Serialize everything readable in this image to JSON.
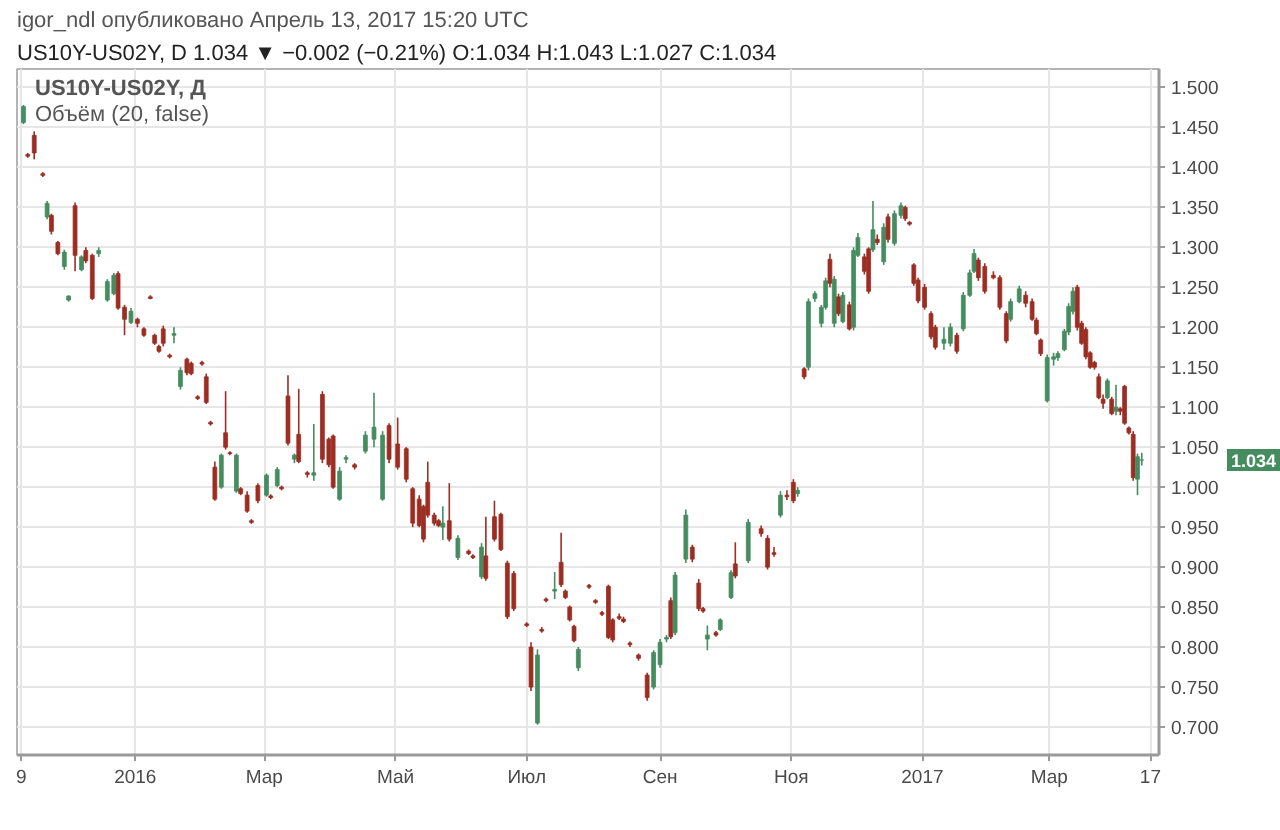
{
  "chart_data": {
    "type": "candlestick",
    "title": "US10Y-US02Y, D  1.034 ▼ −0.002 (−0.21%)  O:1.034 H:1.043 L:1.027 C:1.034",
    "annotations": [
      "igor_ndl опубликовано Апрель 13, 2017 15:20 UTC",
      "US10Y-US02Y, Д",
      "Объём (20, false)",
      "1.034"
    ],
    "x": [
      "2015-11-10",
      "2015-11-12",
      "2015-11-15",
      "2015-11-19",
      "2015-11-21",
      "2015-11-23",
      "2015-11-26",
      "2015-11-29",
      "2015-12-01",
      "2015-12-04",
      "2015-12-07",
      "2015-12-09",
      "2015-12-12",
      "2015-12-15",
      "2015-12-19",
      "2015-12-22",
      "2015-12-24",
      "2015-12-27",
      "2015-12-30",
      "2016-01-02",
      "2016-01-05",
      "2016-01-08",
      "2016-01-10",
      "2016-01-12",
      "2016-01-14",
      "2016-01-17",
      "2016-01-19",
      "2016-01-22",
      "2016-01-25",
      "2016-01-27",
      "2016-01-30",
      "2016-02-01",
      "2016-02-03",
      "2016-02-05",
      "2016-02-07",
      "2016-02-10",
      "2016-02-12",
      "2016-02-14",
      "2016-02-17",
      "2016-02-19",
      "2016-02-22",
      "2016-02-24",
      "2016-02-27",
      "2016-03-02",
      "2016-03-04",
      "2016-03-07",
      "2016-03-09",
      "2016-03-12",
      "2016-03-15",
      "2016-03-17",
      "2016-03-21",
      "2016-03-24",
      "2016-03-28",
      "2016-03-31",
      "2016-04-02",
      "2016-04-05",
      "2016-04-08",
      "2016-04-12",
      "2016-04-17",
      "2016-04-21",
      "2016-04-25",
      "2016-04-28",
      "2016-05-02",
      "2016-05-06",
      "2016-05-09",
      "2016-05-12",
      "2016-05-14",
      "2016-05-16",
      "2016-05-19",
      "2016-05-21",
      "2016-05-23",
      "2016-05-26",
      "2016-05-30",
      "2016-06-04",
      "2016-06-06",
      "2016-06-10",
      "2016-06-12",
      "2016-06-16",
      "2016-06-19",
      "2016-06-22",
      "2016-06-25",
      "2016-07-01",
      "2016-07-03",
      "2016-07-06",
      "2016-07-08",
      "2016-07-10",
      "2016-07-14",
      "2016-07-17",
      "2016-07-19",
      "2016-07-21",
      "2016-07-23",
      "2016-07-25",
      "2016-07-30",
      "2016-08-02",
      "2016-08-05",
      "2016-08-08",
      "2016-08-10",
      "2016-08-13",
      "2016-08-15",
      "2016-08-18",
      "2016-08-22",
      "2016-08-26",
      "2016-08-29",
      "2016-09-01",
      "2016-09-04",
      "2016-09-06",
      "2016-09-08",
      "2016-09-13",
      "2016-09-16",
      "2016-09-19",
      "2016-09-21",
      "2016-09-23",
      "2016-09-27",
      "2016-09-29",
      "2016-10-04",
      "2016-10-06",
      "2016-10-12",
      "2016-10-18",
      "2016-10-21",
      "2016-10-24",
      "2016-10-27",
      "2016-10-30",
      "2016-11-02",
      "2016-11-04",
      "2016-11-07",
      "2016-11-09",
      "2016-11-12",
      "2016-11-15",
      "2016-11-17",
      "2016-11-19",
      "2016-11-21",
      "2016-11-23",
      "2016-11-25",
      "2016-11-28",
      "2016-11-30",
      "2016-12-02",
      "2016-12-05",
      "2016-12-07",
      "2016-12-09",
      "2016-12-11",
      "2016-12-14",
      "2016-12-16",
      "2016-12-19",
      "2016-12-22",
      "2016-12-24",
      "2016-12-26",
      "2016-12-28",
      "2016-12-30",
      "2017-01-02",
      "2017-01-05",
      "2017-01-07",
      "2017-01-11",
      "2017-01-14",
      "2017-01-17",
      "2017-01-20",
      "2017-01-23",
      "2017-01-25",
      "2017-01-27",
      "2017-01-30",
      "2017-02-03",
      "2017-02-06",
      "2017-02-09",
      "2017-02-11",
      "2017-02-15",
      "2017-02-18",
      "2017-02-21",
      "2017-02-23",
      "2017-02-25",
      "2017-02-28",
      "2017-03-03",
      "2017-03-05",
      "2017-03-08",
      "2017-03-10",
      "2017-03-12",
      "2017-03-14",
      "2017-03-16",
      "2017-03-18",
      "2017-03-20",
      "2017-03-22",
      "2017-03-24",
      "2017-03-26",
      "2017-03-28",
      "2017-03-30",
      "2017-04-01",
      "2017-04-03",
      "2017-04-05",
      "2017-04-07",
      "2017-04-09",
      "2017-04-11",
      "2017-04-13"
    ],
    "ohlc": [
      [
        1.456,
        1.478,
        1.454,
        1.476
      ],
      [
        1.416,
        1.418,
        1.412,
        1.414
      ],
      [
        1.44,
        1.445,
        1.41,
        1.418
      ],
      [
        1.392,
        1.394,
        1.388,
        1.39
      ],
      [
        1.338,
        1.358,
        1.335,
        1.355
      ],
      [
        1.34,
        1.342,
        1.316,
        1.32
      ],
      [
        1.306,
        1.308,
        1.29,
        1.292
      ],
      [
        1.276,
        1.297,
        1.272,
        1.294
      ],
      [
        1.234,
        1.24,
        1.232,
        1.239
      ],
      [
        1.352,
        1.356,
        1.27,
        1.29
      ],
      [
        1.272,
        1.29,
        1.27,
        1.288
      ],
      [
        1.296,
        1.3,
        1.28,
        1.283
      ],
      [
        1.29,
        1.292,
        1.234,
        1.236
      ],
      [
        1.292,
        1.3,
        1.288,
        1.296
      ],
      [
        1.234,
        1.26,
        1.232,
        1.257
      ],
      [
        1.242,
        1.268,
        1.24,
        1.265
      ],
      [
        1.267,
        1.27,
        1.222,
        1.224
      ],
      [
        1.225,
        1.228,
        1.19,
        1.21
      ],
      [
        1.206,
        1.224,
        1.204,
        1.22
      ],
      [
        1.21,
        1.212,
        1.2,
        1.205
      ],
      [
        1.198,
        1.2,
        1.188,
        1.19
      ],
      [
        1.238,
        1.24,
        1.235,
        1.236
      ],
      [
        1.19,
        1.192,
        1.178,
        1.18
      ],
      [
        1.176,
        1.178,
        1.168,
        1.17
      ],
      [
        1.198,
        1.202,
        1.176,
        1.18
      ],
      [
        1.165,
        1.167,
        1.161,
        1.163
      ],
      [
        1.19,
        1.2,
        1.18,
        1.192
      ],
      [
        1.126,
        1.15,
        1.122,
        1.146
      ],
      [
        1.16,
        1.162,
        1.14,
        1.143
      ],
      [
        1.155,
        1.157,
        1.14,
        1.142
      ],
      [
        1.113,
        1.115,
        1.109,
        1.111
      ],
      [
        1.156,
        1.158,
        1.152,
        1.154
      ],
      [
        1.138,
        1.142,
        1.104,
        1.106
      ],
      [
        1.081,
        1.083,
        1.077,
        1.079
      ],
      [
        1.025,
        1.032,
        0.983,
        0.985
      ],
      [
        1.0,
        1.042,
        0.998,
        1.04
      ],
      [
        1.068,
        1.12,
        1.047,
        1.05
      ],
      [
        1.043,
        1.045,
        1.04,
        1.042
      ],
      [
        0.995,
        1.042,
        0.993,
        1.04
      ],
      [
        0.998,
        1.0,
        0.99,
        0.992
      ],
      [
        0.99,
        0.995,
        0.968,
        0.97
      ],
      [
        0.958,
        0.96,
        0.954,
        0.956
      ],
      [
        1.002,
        1.005,
        0.98,
        0.983
      ],
      [
        0.99,
        1.017,
        0.988,
        1.015
      ],
      [
        0.989,
        0.991,
        0.985,
        0.987
      ],
      [
        1.002,
        1.025,
        1.0,
        1.022
      ],
      [
        1.0,
        1.002,
        0.996,
        0.998
      ],
      [
        1.114,
        1.14,
        1.052,
        1.055
      ],
      [
        1.035,
        1.042,
        1.03,
        1.04
      ],
      [
        1.066,
        1.123,
        1.03,
        1.032
      ],
      [
        1.018,
        1.02,
        1.012,
        1.016
      ],
      [
        1.015,
        1.079,
        1.008,
        1.018
      ],
      [
        1.116,
        1.12,
        1.03,
        1.035
      ],
      [
        1.06,
        1.062,
        1.025,
        1.028
      ],
      [
        1.064,
        1.066,
        0.998,
        1.0
      ],
      [
        0.985,
        1.025,
        0.983,
        1.02
      ],
      [
        1.035,
        1.04,
        1.03,
        1.037
      ],
      [
        1.028,
        1.03,
        1.022,
        1.025
      ],
      [
        1.045,
        1.07,
        1.042,
        1.065
      ],
      [
        1.06,
        1.118,
        1.05,
        1.075
      ],
      [
        0.985,
        1.07,
        0.983,
        1.065
      ],
      [
        1.077,
        1.08,
        1.03,
        1.035
      ],
      [
        1.054,
        1.087,
        1.022,
        1.025
      ],
      [
        1.048,
        1.05,
        1.006,
        1.01
      ],
      [
        0.998,
        1.0,
        0.95,
        0.955
      ],
      [
        0.985,
        0.99,
        0.95,
        0.952
      ],
      [
        0.976,
        0.978,
        0.931,
        0.935
      ],
      [
        1.006,
        1.032,
        0.962,
        0.965
      ],
      [
        0.965,
        0.968,
        0.952,
        0.955
      ],
      [
        0.958,
        0.96,
        0.95,
        0.952
      ],
      [
        0.95,
        0.976,
        0.934,
        0.955
      ],
      [
        0.958,
        1.005,
        0.932,
        0.935
      ],
      [
        0.912,
        0.94,
        0.909,
        0.936
      ],
      [
        0.92,
        0.922,
        0.915,
        0.917
      ],
      [
        0.914,
        0.916,
        0.91,
        0.912
      ],
      [
        0.888,
        0.93,
        0.885,
        0.925
      ],
      [
        0.914,
        0.963,
        0.883,
        0.886
      ],
      [
        0.963,
        0.983,
        0.932,
        0.935
      ],
      [
        0.966,
        0.968,
        0.92,
        0.922
      ],
      [
        0.905,
        0.908,
        0.835,
        0.838
      ],
      [
        0.892,
        0.895,
        0.845,
        0.848
      ],
      [
        0.829,
        0.831,
        0.825,
        0.827
      ],
      [
        0.8,
        0.806,
        0.745,
        0.75
      ],
      [
        0.705,
        0.797,
        0.703,
        0.79
      ],
      [
        0.822,
        0.825,
        0.818,
        0.82
      ],
      [
        0.86,
        0.862,
        0.856,
        0.858
      ],
      [
        0.87,
        0.894,
        0.86,
        0.872
      ],
      [
        0.906,
        0.943,
        0.875,
        0.878
      ],
      [
        0.87,
        0.872,
        0.86,
        0.862
      ],
      [
        0.85,
        0.852,
        0.832,
        0.834
      ],
      [
        0.826,
        0.828,
        0.806,
        0.808
      ],
      [
        0.774,
        0.8,
        0.77,
        0.797
      ],
      [
        0.877,
        0.879,
        0.873,
        0.875
      ],
      [
        0.858,
        0.86,
        0.854,
        0.856
      ],
      [
        0.843,
        0.845,
        0.839,
        0.841
      ],
      [
        0.876,
        0.878,
        0.81,
        0.812
      ],
      [
        0.834,
        0.836,
        0.806,
        0.809
      ],
      [
        0.838,
        0.842,
        0.834,
        0.836
      ],
      [
        0.835,
        0.838,
        0.83,
        0.832
      ],
      [
        0.805,
        0.807,
        0.8,
        0.803
      ],
      [
        0.79,
        0.792,
        0.783,
        0.786
      ],
      [
        0.765,
        0.768,
        0.733,
        0.737
      ],
      [
        0.75,
        0.796,
        0.747,
        0.793
      ],
      [
        0.778,
        0.81,
        0.774,
        0.806
      ],
      [
        0.81,
        0.815,
        0.806,
        0.812
      ],
      [
        0.858,
        0.862,
        0.81,
        0.813
      ],
      [
        0.818,
        0.894,
        0.815,
        0.89
      ],
      [
        0.91,
        0.972,
        0.905,
        0.965
      ],
      [
        0.925,
        0.928,
        0.906,
        0.91
      ],
      [
        0.88,
        0.885,
        0.845,
        0.848
      ],
      [
        0.848,
        0.85,
        0.843,
        0.845
      ],
      [
        0.81,
        0.827,
        0.796,
        0.815
      ],
      [
        0.818,
        0.82,
        0.813,
        0.815
      ],
      [
        0.822,
        0.836,
        0.82,
        0.834
      ],
      [
        0.862,
        0.896,
        0.86,
        0.893
      ],
      [
        0.904,
        0.931,
        0.886,
        0.889
      ],
      [
        0.908,
        0.96,
        0.905,
        0.956
      ],
      [
        0.948,
        0.952,
        0.938,
        0.942
      ],
      [
        0.936,
        0.94,
        0.897,
        0.9
      ],
      [
        0.918,
        0.925,
        0.913,
        0.916
      ],
      [
        0.965,
        0.995,
        0.962,
        0.99
      ],
      [
        0.99,
        0.996,
        0.984,
        0.988
      ],
      [
        1.006,
        1.01,
        0.98,
        0.983
      ],
      [
        0.992,
        1.0,
        0.988,
        0.996
      ],
      [
        1.148,
        1.15,
        1.135,
        1.138
      ],
      [
        1.15,
        1.236,
        1.146,
        1.232
      ],
      [
        1.236,
        1.245,
        1.232,
        1.242
      ],
      [
        1.205,
        1.228,
        1.2,
        1.225
      ],
      [
        1.225,
        1.262,
        1.222,
        1.258
      ],
      [
        1.285,
        1.292,
        1.25,
        1.255
      ],
      [
        1.205,
        1.264,
        1.2,
        1.26
      ],
      [
        1.238,
        1.242,
        1.214,
        1.217
      ],
      [
        1.207,
        1.244,
        1.205,
        1.24
      ],
      [
        1.228,
        1.232,
        1.196,
        1.198
      ],
      [
        1.2,
        1.3,
        1.196,
        1.296
      ],
      [
        1.29,
        1.318,
        1.288,
        1.312
      ],
      [
        1.288,
        1.292,
        1.266,
        1.27
      ],
      [
        1.298,
        1.3,
        1.242,
        1.245
      ],
      [
        1.297,
        1.358,
        1.294,
        1.322
      ],
      [
        1.31,
        1.316,
        1.303,
        1.306
      ],
      [
        1.282,
        1.33,
        1.278,
        1.325
      ],
      [
        1.338,
        1.342,
        1.306,
        1.31
      ],
      [
        1.305,
        1.346,
        1.302,
        1.342
      ],
      [
        1.34,
        1.356,
        1.336,
        1.352
      ],
      [
        1.35,
        1.352,
        1.333,
        1.336
      ],
      [
        1.331,
        1.333,
        1.327,
        1.329
      ],
      [
        1.278,
        1.28,
        1.252,
        1.255
      ],
      [
        1.259,
        1.262,
        1.23,
        1.233
      ],
      [
        1.25,
        1.254,
        1.222,
        1.225
      ],
      [
        1.217,
        1.22,
        1.185,
        1.188
      ],
      [
        1.2,
        1.203,
        1.172,
        1.175
      ],
      [
        1.18,
        1.2,
        1.172,
        1.185
      ],
      [
        1.18,
        1.205,
        1.176,
        1.2
      ],
      [
        1.19,
        1.193,
        1.167,
        1.17
      ],
      [
        1.198,
        1.244,
        1.195,
        1.24
      ],
      [
        1.24,
        1.272,
        1.238,
        1.268
      ],
      [
        1.27,
        1.298,
        1.268,
        1.292
      ],
      [
        1.284,
        1.287,
        1.258,
        1.262
      ],
      [
        1.276,
        1.28,
        1.242,
        1.245
      ],
      [
        1.265,
        1.27,
        1.26,
        1.262
      ],
      [
        1.262,
        1.265,
        1.222,
        1.225
      ],
      [
        1.217,
        1.22,
        1.18,
        1.183
      ],
      [
        1.21,
        1.236,
        1.207,
        1.232
      ],
      [
        1.232,
        1.252,
        1.23,
        1.248
      ],
      [
        1.24,
        1.245,
        1.225,
        1.23
      ],
      [
        1.232,
        1.236,
        1.208,
        1.21
      ],
      [
        1.209,
        1.212,
        1.19,
        1.192
      ],
      [
        1.184,
        1.186,
        1.164,
        1.167
      ],
      [
        1.108,
        1.166,
        1.106,
        1.162
      ],
      [
        1.16,
        1.168,
        1.152,
        1.163
      ],
      [
        1.162,
        1.17,
        1.158,
        1.167
      ],
      [
        1.172,
        1.198,
        1.17,
        1.195
      ],
      [
        1.194,
        1.23,
        1.19,
        1.226
      ],
      [
        1.22,
        1.25,
        1.216,
        1.245
      ],
      [
        1.25,
        1.253,
        1.196,
        1.2
      ],
      [
        1.205,
        1.208,
        1.178,
        1.18
      ],
      [
        1.197,
        1.2,
        1.16,
        1.163
      ],
      [
        1.168,
        1.17,
        1.148,
        1.15
      ],
      [
        1.156,
        1.158,
        1.147,
        1.15
      ],
      [
        1.138,
        1.142,
        1.11,
        1.112
      ],
      [
        1.11,
        1.116,
        1.098,
        1.105
      ],
      [
        1.112,
        1.136,
        1.11,
        1.133
      ],
      [
        1.11,
        1.113,
        1.09,
        1.092
      ],
      [
        1.095,
        1.128,
        1.09,
        1.1
      ],
      [
        1.098,
        1.1,
        1.09,
        1.095
      ],
      [
        1.126,
        1.128,
        1.078,
        1.08
      ],
      [
        1.074,
        1.076,
        1.066,
        1.068
      ],
      [
        1.066,
        1.07,
        1.008,
        1.012
      ],
      [
        1.01,
        1.042,
        0.99,
        1.038
      ],
      [
        1.034,
        1.043,
        1.027,
        1.034
      ]
    ],
    "colors": [
      "#458c5f",
      "#9c2d22",
      "#9c2d22",
      "#9c2d22",
      "#458c5f",
      "#9c2d22",
      "#9c2d22",
      "#458c5f",
      "#458c5f",
      "#9c2d22",
      "#458c5f",
      "#9c2d22",
      "#9c2d22",
      "#458c5f",
      "#458c5f",
      "#458c5f",
      "#9c2d22",
      "#9c2d22",
      "#458c5f",
      "#9c2d22",
      "#9c2d22",
      "#9c2d22",
      "#9c2d22",
      "#9c2d22",
      "#9c2d22",
      "#9c2d22",
      "#458c5f",
      "#458c5f",
      "#9c2d22",
      "#9c2d22",
      "#9c2d22",
      "#9c2d22",
      "#9c2d22",
      "#9c2d22",
      "#9c2d22",
      "#458c5f",
      "#9c2d22",
      "#9c2d22",
      "#458c5f",
      "#9c2d22",
      "#9c2d22",
      "#9c2d22",
      "#9c2d22",
      "#458c5f",
      "#9c2d22",
      "#458c5f",
      "#9c2d22",
      "#9c2d22",
      "#458c5f",
      "#9c2d22",
      "#9c2d22",
      "#458c5f",
      "#9c2d22",
      "#9c2d22",
      "#9c2d22",
      "#458c5f",
      "#458c5f",
      "#9c2d22",
      "#458c5f",
      "#458c5f",
      "#458c5f",
      "#9c2d22",
      "#9c2d22",
      "#9c2d22",
      "#9c2d22",
      "#9c2d22",
      "#9c2d22",
      "#9c2d22",
      "#9c2d22",
      "#9c2d22",
      "#458c5f",
      "#9c2d22",
      "#458c5f",
      "#9c2d22",
      "#9c2d22",
      "#458c5f",
      "#9c2d22",
      "#9c2d22",
      "#9c2d22",
      "#9c2d22",
      "#9c2d22",
      "#9c2d22",
      "#9c2d22",
      "#458c5f",
      "#9c2d22",
      "#9c2d22",
      "#458c5f",
      "#9c2d22",
      "#9c2d22",
      "#9c2d22",
      "#9c2d22",
      "#458c5f",
      "#9c2d22",
      "#9c2d22",
      "#9c2d22",
      "#9c2d22",
      "#9c2d22",
      "#9c2d22",
      "#9c2d22",
      "#9c2d22",
      "#9c2d22",
      "#9c2d22",
      "#458c5f",
      "#458c5f",
      "#458c5f",
      "#9c2d22",
      "#458c5f",
      "#458c5f",
      "#9c2d22",
      "#9c2d22",
      "#9c2d22",
      "#458c5f",
      "#9c2d22",
      "#458c5f",
      "#458c5f",
      "#9c2d22",
      "#458c5f",
      "#9c2d22",
      "#9c2d22",
      "#9c2d22",
      "#458c5f",
      "#9c2d22",
      "#9c2d22",
      "#458c5f",
      "#9c2d22",
      "#458c5f",
      "#458c5f",
      "#458c5f",
      "#458c5f",
      "#9c2d22",
      "#458c5f",
      "#9c2d22",
      "#458c5f",
      "#9c2d22",
      "#458c5f",
      "#458c5f",
      "#9c2d22",
      "#9c2d22",
      "#458c5f",
      "#9c2d22",
      "#458c5f",
      "#9c2d22",
      "#458c5f",
      "#458c5f",
      "#9c2d22",
      "#9c2d22",
      "#9c2d22",
      "#9c2d22",
      "#9c2d22",
      "#9c2d22",
      "#9c2d22",
      "#458c5f",
      "#458c5f",
      "#9c2d22",
      "#458c5f",
      "#458c5f",
      "#458c5f",
      "#9c2d22",
      "#9c2d22",
      "#9c2d22",
      "#9c2d22",
      "#9c2d22",
      "#458c5f",
      "#458c5f",
      "#9c2d22",
      "#9c2d22",
      "#9c2d22",
      "#9c2d22",
      "#458c5f",
      "#458c5f",
      "#458c5f",
      "#458c5f",
      "#458c5f",
      "#458c5f",
      "#9c2d22",
      "#9c2d22",
      "#9c2d22",
      "#9c2d22",
      "#9c2d22",
      "#9c2d22",
      "#9c2d22",
      "#458c5f",
      "#9c2d22",
      "#458c5f",
      "#9c2d22",
      "#9c2d22",
      "#9c2d22",
      "#9c2d22",
      "#458c5f",
      "#458c5f"
    ],
    "xlim": [
      "2015-11-07",
      "2017-04-21"
    ],
    "xticks": [
      {
        "value": "2015-11-09",
        "label": "9"
      },
      {
        "value": "2016-01-01",
        "label": "2016"
      },
      {
        "value": "2016-03-01",
        "label": "Мар"
      },
      {
        "value": "2016-05-01",
        "label": "Май"
      },
      {
        "value": "2016-07-01",
        "label": "Июл"
      },
      {
        "value": "2016-09-01",
        "label": "Сен"
      },
      {
        "value": "2016-11-01",
        "label": "Ноя"
      },
      {
        "value": "2017-01-01",
        "label": "2017"
      },
      {
        "value": "2017-03-01",
        "label": "Мар"
      },
      {
        "value": "2017-04-17",
        "label": "17"
      }
    ],
    "ylim": [
      0.665,
      1.523
    ],
    "yticks": [
      {
        "value": 0.7,
        "label": "0.700"
      },
      {
        "value": 0.75,
        "label": "0.750"
      },
      {
        "value": 0.8,
        "label": "0.800"
      },
      {
        "value": 0.85,
        "label": "0.850"
      },
      {
        "value": 0.9,
        "label": "0.900"
      },
      {
        "value": 0.95,
        "label": "0.950"
      },
      {
        "value": 1.0,
        "label": "1.000"
      },
      {
        "value": 1.05,
        "label": "1.050"
      },
      {
        "value": 1.1,
        "label": "1.100"
      },
      {
        "value": 1.15,
        "label": "1.150"
      },
      {
        "value": 1.2,
        "label": "1.200"
      },
      {
        "value": 1.25,
        "label": "1.250"
      },
      {
        "value": 1.3,
        "label": "1.300"
      },
      {
        "value": 1.35,
        "label": "1.350"
      },
      {
        "value": 1.4,
        "label": "1.400"
      },
      {
        "value": 1.45,
        "label": "1.450"
      },
      {
        "value": 1.5,
        "label": "1.500"
      }
    ],
    "grid": true
  }
}
